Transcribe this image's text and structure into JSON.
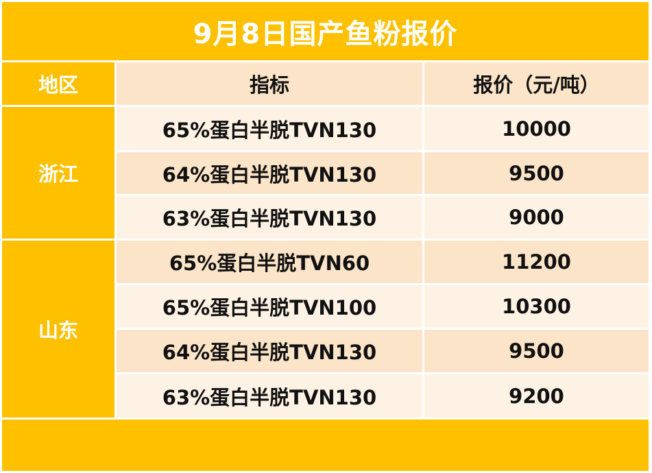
{
  "title": "9月8日国产鱼粉报价",
  "headers": {
    "region": "地区",
    "spec": "指标",
    "price": "报价（元/吨）"
  },
  "groups": [
    {
      "region": "浙江"
    },
    {
      "region": "山东"
    }
  ],
  "rows": [
    {
      "spec": "65%蛋白半脱TVN130",
      "price": "10000"
    },
    {
      "spec": "64%蛋白半脱TVN130",
      "price": "9500"
    },
    {
      "spec": "63%蛋白半脱TVN130",
      "price": "9000"
    },
    {
      "spec": "65%蛋白半脱TVN60",
      "price": "11200"
    },
    {
      "spec": "65%蛋白半脱TVN100",
      "price": "10300"
    },
    {
      "spec": "64%蛋白半脱TVN130",
      "price": "9500"
    },
    {
      "spec": "63%蛋白半脱TVN130",
      "price": "9200"
    }
  ]
}
